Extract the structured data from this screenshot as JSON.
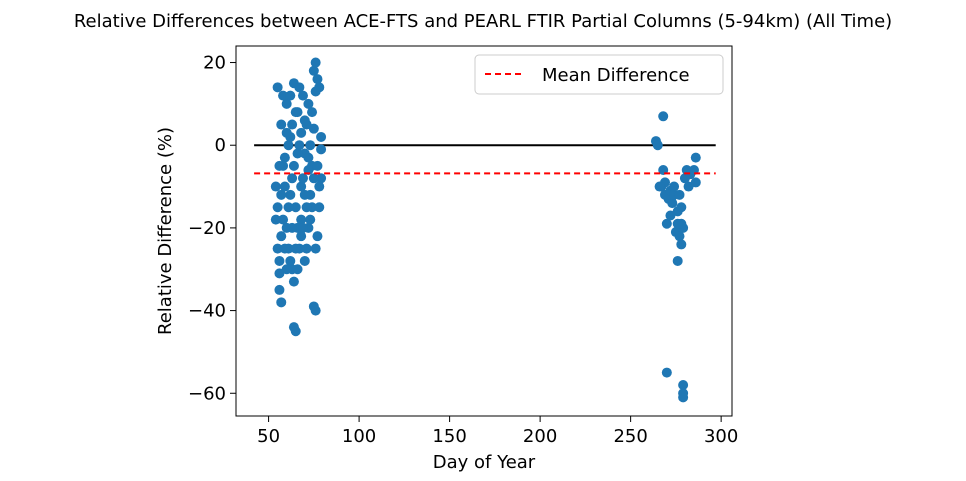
{
  "chart_data": {
    "type": "scatter",
    "title": "Relative Differences between ACE-FTS and PEARL FTIR Partial Columns (5-94km) (All Time)",
    "xlabel": "Day of Year",
    "ylabel": "Relative Difference (%)",
    "xlim": [
      32,
      306
    ],
    "ylim": [
      -65.5,
      24
    ],
    "xticks": [
      50,
      100,
      150,
      200,
      250,
      300
    ],
    "yticks": [
      -60,
      -40,
      -20,
      0,
      20
    ],
    "xtick_labels": [
      "50",
      "100",
      "150",
      "200",
      "250",
      "300"
    ],
    "ytick_labels": [
      "−60",
      "−40",
      "−20",
      "0",
      "20"
    ],
    "grid": false,
    "legend": {
      "placement": "top-right",
      "entries": [
        {
          "label": "Mean Difference",
          "style": "dashed",
          "color": "#ff0000"
        }
      ]
    },
    "zero_line": {
      "x": [
        42,
        297
      ],
      "y": 0,
      "color": "#000000"
    },
    "mean_line": {
      "x": [
        42,
        297
      ],
      "y": -6.8,
      "color": "#ff0000"
    },
    "point_color": "#1f77b4",
    "points": [
      [
        55,
        14
      ],
      [
        56,
        -31
      ],
      [
        57,
        -38
      ],
      [
        56,
        -35
      ],
      [
        58,
        12
      ],
      [
        59,
        -3
      ],
      [
        60,
        10
      ],
      [
        61,
        -25
      ],
      [
        62,
        2
      ],
      [
        63,
        -30
      ],
      [
        64,
        15
      ],
      [
        64,
        -44
      ],
      [
        65,
        -45
      ],
      [
        66,
        -20
      ],
      [
        67,
        14
      ],
      [
        68,
        -10
      ],
      [
        69,
        12
      ],
      [
        70,
        -28
      ],
      [
        71,
        5
      ],
      [
        72,
        -20
      ],
      [
        73,
        0
      ],
      [
        74,
        -15
      ],
      [
        75,
        18
      ],
      [
        75,
        -39
      ],
      [
        76,
        20
      ],
      [
        76,
        -40
      ],
      [
        77,
        -22
      ],
      [
        77,
        16
      ],
      [
        78,
        -15
      ],
      [
        78,
        14
      ],
      [
        79,
        2
      ],
      [
        79,
        -8
      ],
      [
        76,
        -25
      ],
      [
        58,
        -5
      ],
      [
        60,
        -20
      ],
      [
        62,
        -12
      ],
      [
        66,
        8
      ],
      [
        68,
        -18
      ],
      [
        70,
        -2
      ],
      [
        72,
        10
      ],
      [
        55,
        -15
      ],
      [
        56,
        -5
      ],
      [
        57,
        -22
      ],
      [
        59,
        -10
      ],
      [
        61,
        0
      ],
      [
        63,
        -8
      ],
      [
        65,
        -15
      ],
      [
        67,
        -25
      ],
      [
        69,
        -8
      ],
      [
        71,
        -15
      ],
      [
        73,
        -12
      ],
      [
        74,
        -5
      ],
      [
        55,
        -25
      ],
      [
        57,
        5
      ],
      [
        60,
        3
      ],
      [
        62,
        -28
      ],
      [
        64,
        -33
      ],
      [
        66,
        -2
      ],
      [
        68,
        3
      ],
      [
        70,
        -12
      ],
      [
        72,
        -6
      ],
      [
        74,
        8
      ],
      [
        78,
        -10
      ],
      [
        77,
        -5
      ],
      [
        56,
        -28
      ],
      [
        58,
        -18
      ],
      [
        63,
        -20
      ],
      [
        65,
        8
      ],
      [
        67,
        0
      ],
      [
        69,
        -20
      ],
      [
        71,
        -25
      ],
      [
        73,
        -18
      ],
      [
        75,
        -8
      ],
      [
        54,
        -18
      ],
      [
        54,
        -10
      ],
      [
        60,
        -30
      ],
      [
        65,
        -25
      ],
      [
        70,
        6
      ],
      [
        75,
        4
      ],
      [
        76,
        13
      ],
      [
        61,
        -15
      ],
      [
        66,
        -30
      ],
      [
        59,
        -25
      ],
      [
        63,
        5
      ],
      [
        68,
        -22
      ],
      [
        72,
        -3
      ],
      [
        57,
        -12
      ],
      [
        64,
        -5
      ],
      [
        62,
        12
      ],
      [
        79,
        -1
      ],
      [
        264,
        1
      ],
      [
        268,
        7
      ],
      [
        268,
        -6
      ],
      [
        267,
        -10
      ],
      [
        269,
        -12
      ],
      [
        270,
        -19
      ],
      [
        271,
        -13
      ],
      [
        272,
        -11
      ],
      [
        273,
        -14
      ],
      [
        274,
        -12
      ],
      [
        275,
        -21
      ],
      [
        276,
        -28
      ],
      [
        276,
        -16
      ],
      [
        277,
        -22
      ],
      [
        278,
        -24
      ],
      [
        279,
        -20
      ],
      [
        280,
        -8
      ],
      [
        281,
        -6
      ],
      [
        282,
        -10
      ],
      [
        283,
        -7
      ],
      [
        286,
        -3
      ],
      [
        286,
        -9
      ],
      [
        285,
        -6
      ],
      [
        270,
        -55
      ],
      [
        279,
        -58
      ],
      [
        279,
        -61
      ],
      [
        279,
        -60
      ],
      [
        278,
        -19
      ],
      [
        277,
        -12
      ],
      [
        274,
        -10
      ],
      [
        272,
        -17
      ],
      [
        269,
        -9
      ],
      [
        266,
        -10
      ],
      [
        265,
        0
      ],
      [
        276,
        -19
      ],
      [
        278,
        -15
      ]
    ]
  }
}
